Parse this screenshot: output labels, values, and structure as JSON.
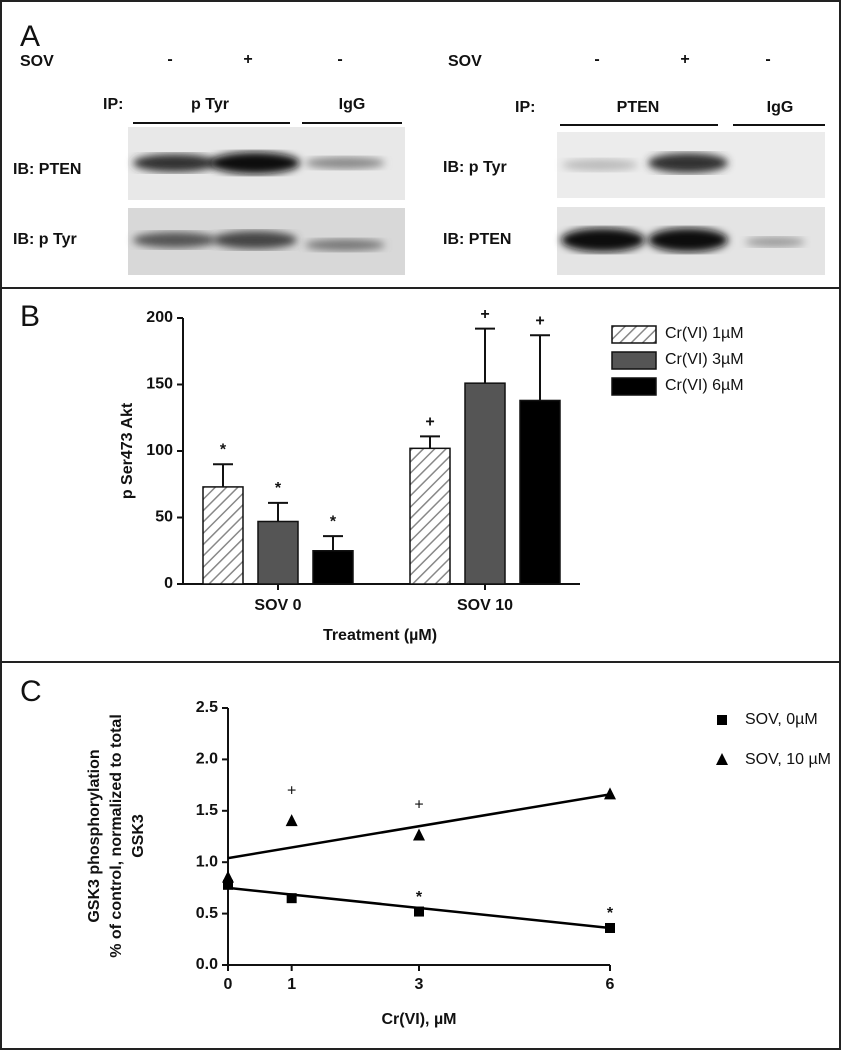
{
  "panel_a": {
    "label": "A",
    "left": {
      "sov_label": "SOV",
      "sov_signs": [
        "-",
        "+",
        "-"
      ],
      "ip_label": "IP:",
      "ip_groups": [
        "p Tyr",
        "IgG"
      ],
      "ib_rows": [
        "IB: PTEN",
        "IB: p Tyr"
      ]
    },
    "right": {
      "sov_label": "SOV",
      "sov_signs": [
        "-",
        "+",
        "-"
      ],
      "ip_label": "IP:",
      "ip_groups": [
        "PTEN",
        "IgG"
      ],
      "ib_rows": [
        "IB: p Tyr",
        "IB: PTEN"
      ]
    }
  },
  "chart_data": [
    {
      "type": "bar",
      "panel_label": "B",
      "y_label": "p Ser473 Akt",
      "x_label": "Treatment (µM)",
      "categories": [
        "SOV 0",
        "SOV 10"
      ],
      "series": [
        {
          "name": "Cr(VI) 1µM",
          "color": "#ffffff",
          "hatch": true,
          "values": [
            73,
            102
          ],
          "errors": [
            17,
            9
          ],
          "annotations": [
            "*",
            "+"
          ]
        },
        {
          "name": "Cr(VI) 3µM",
          "color": "#555555",
          "values": [
            47,
            151
          ],
          "errors": [
            14,
            41
          ],
          "annotations": [
            "*",
            "+"
          ]
        },
        {
          "name": "Cr(VI) 6µM",
          "color": "#000000",
          "values": [
            25,
            138
          ],
          "errors": [
            11,
            49
          ],
          "annotations": [
            "*",
            "+"
          ]
        }
      ],
      "ylim": [
        0,
        200
      ],
      "yticks": [
        0,
        50,
        100,
        150,
        200
      ],
      "legend": "right"
    },
    {
      "type": "scatter",
      "panel_label": "C",
      "y_label": [
        "GSK3 phosphorylation",
        "% of control, normalized to total",
        "GSK3"
      ],
      "x_label": "Cr(VI), µM",
      "x": [
        0,
        1,
        3,
        6
      ],
      "series": [
        {
          "name": "SOV, 0µM",
          "color": "#000000",
          "marker": "square",
          "values": [
            0.78,
            0.65,
            0.52,
            0.36
          ],
          "annotations": [
            null,
            null,
            "*",
            "*"
          ],
          "fit": {
            "x": [
              0,
              6
            ],
            "values": [
              0.75,
              0.36
            ]
          }
        },
        {
          "name": "SOV, 10 µM",
          "color": "#000000",
          "marker": "triangle",
          "values": [
            0.85,
            1.4,
            1.26,
            1.66
          ],
          "annotations": [
            null,
            "+",
            "+",
            null
          ],
          "fit": {
            "x": [
              0,
              6
            ],
            "values": [
              1.04,
              1.66
            ]
          }
        }
      ],
      "xlim": [
        0,
        6
      ],
      "xticks": [
        0,
        1,
        3,
        6
      ],
      "ylim": [
        0,
        2.5
      ],
      "yticks": [
        {
          "value": 0,
          "label": "0.0"
        },
        0.5,
        {
          "value": 1,
          "label": "1.0"
        },
        1.5,
        {
          "value": 2,
          "label": "2.0"
        },
        2.5
      ],
      "legend": "upper right"
    }
  ]
}
